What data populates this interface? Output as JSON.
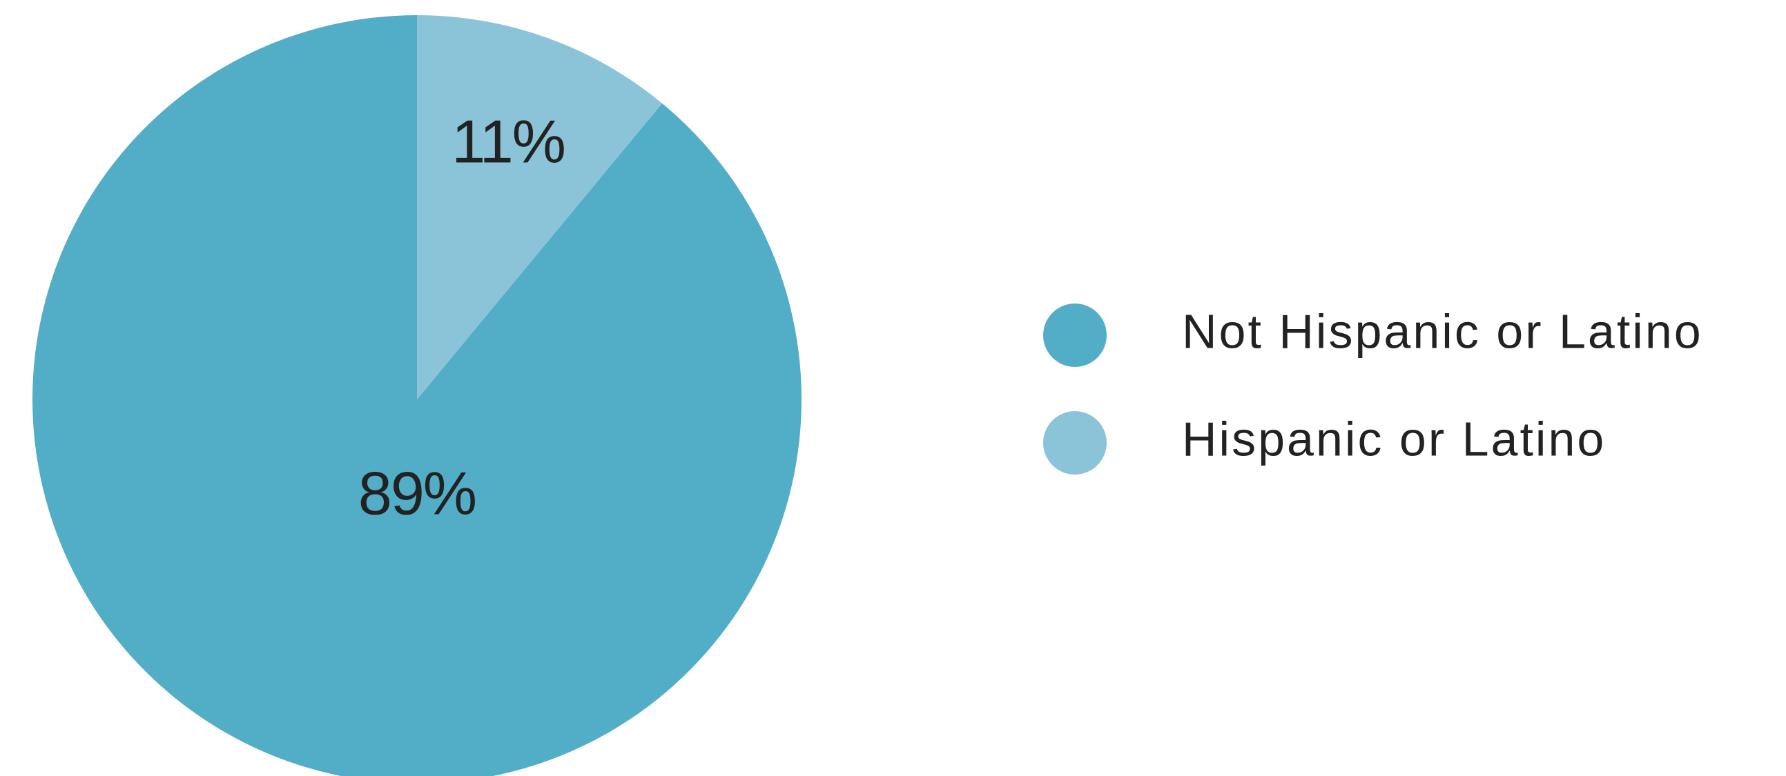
{
  "chart_data": {
    "type": "pie",
    "slices": [
      {
        "label": "Not Hispanic or Latino",
        "value": 89,
        "value_label": "89%",
        "color": "#52aec6"
      },
      {
        "label": "Hispanic or Latino",
        "value": 11,
        "value_label": "11%",
        "color": "#8bc4d8"
      }
    ],
    "start_angle_deg": 0,
    "direction": "clockwise",
    "legend": {
      "position": "right",
      "items": [
        {
          "label": "Not Hispanic or Latino",
          "color": "#52aec6"
        },
        {
          "label": "Hispanic or Latino",
          "color": "#8bc4d8"
        }
      ]
    }
  }
}
